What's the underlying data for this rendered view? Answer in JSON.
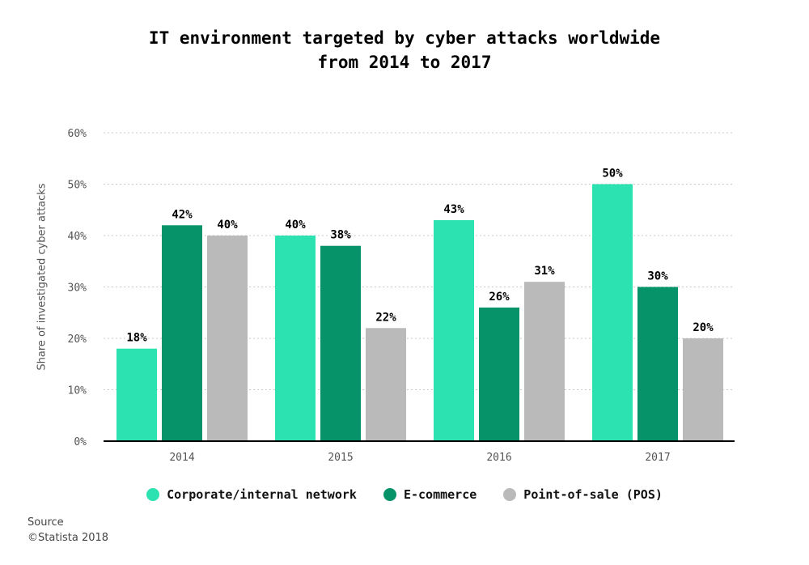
{
  "chart_data": {
    "type": "bar",
    "title_lines": [
      "IT environment targeted by cyber attacks worldwide",
      "from 2014 to 2017"
    ],
    "xlabel": "",
    "ylabel": "Share of investigated cyber attacks",
    "categories": [
      "2014",
      "2015",
      "2016",
      "2017"
    ],
    "series": [
      {
        "name": "Corporate/internal network",
        "values": [
          18,
          40,
          43,
          50
        ],
        "color": "#2de2b1"
      },
      {
        "name": "E-commerce",
        "values": [
          42,
          38,
          26,
          30
        ],
        "color": "#07936a"
      },
      {
        "name": "Point-of-sale (POS)",
        "values": [
          40,
          22,
          31,
          20
        ],
        "color": "#bababa"
      }
    ],
    "value_suffix": "%",
    "ylim": [
      0,
      60
    ],
    "yticks": [
      "0%",
      "10%",
      "20%",
      "30%",
      "40%",
      "50%",
      "60%"
    ],
    "grid": true,
    "legend_position": "bottom"
  },
  "footer": {
    "source_label": "Source",
    "copyright": "©Statista 2018"
  }
}
